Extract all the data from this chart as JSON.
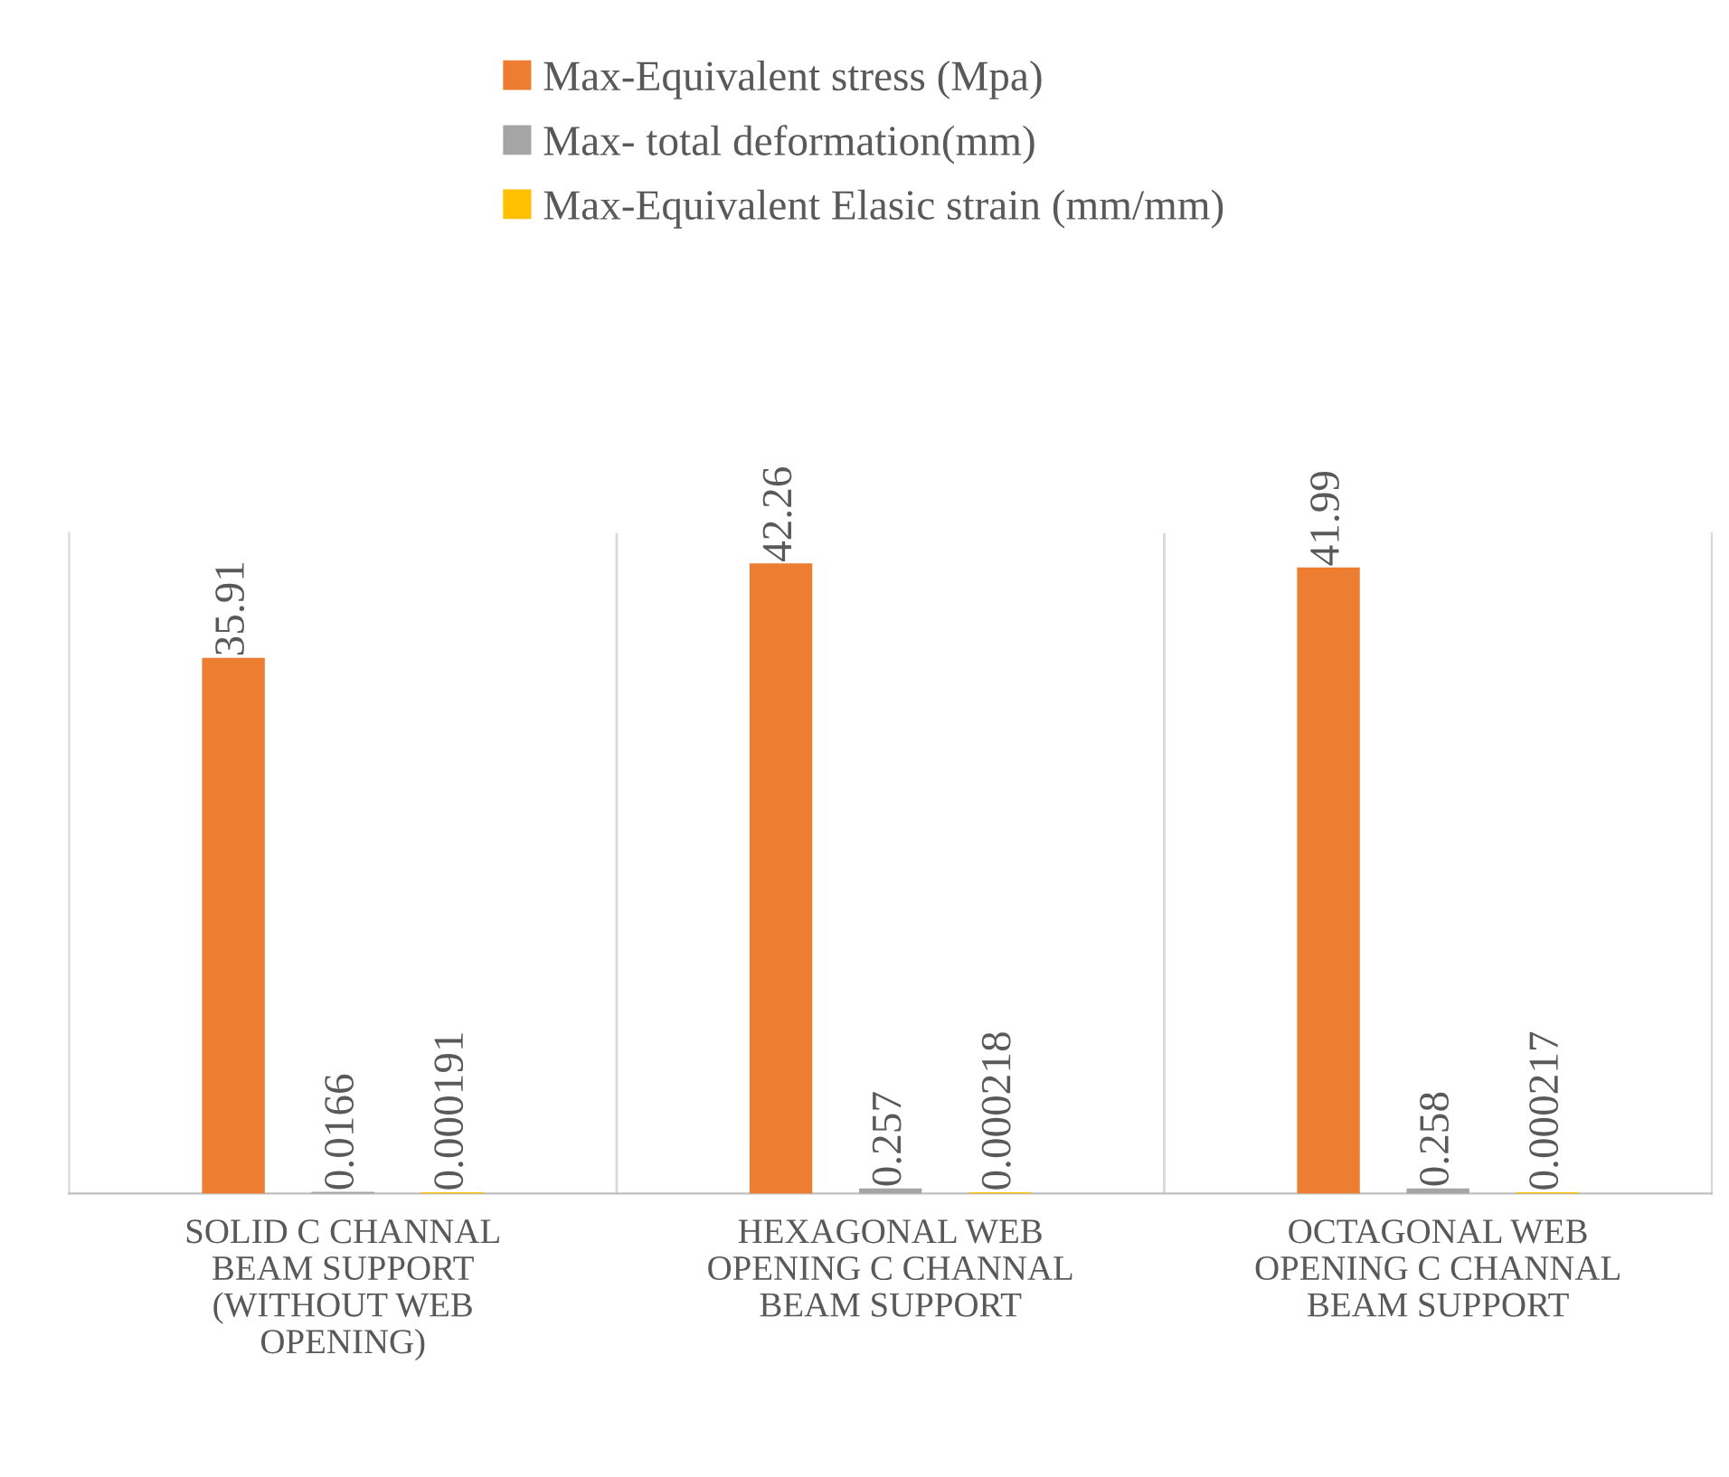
{
  "chart_data": {
    "type": "bar",
    "categories": [
      "SOLID C CHANNAL\nBEAM SUPPORT\n(WITHOUT WEB\nOPENING)",
      "HEXAGONAL WEB\nOPENING C CHANNAL\nBEAM SUPPORT",
      "OCTAGONAL WEB\nOPENING C CHANNAL\nBEAM SUPPORT"
    ],
    "series": [
      {
        "name": "Max-Equivalent stress (Mpa)",
        "color": "#ed7d31",
        "values": [
          35.91,
          42.26,
          41.99
        ]
      },
      {
        "name": "Max- total deformation(mm)",
        "color": "#a5a5a5",
        "values": [
          0.0166,
          0.257,
          0.258
        ]
      },
      {
        "name": "Max-Equivalent Elasic strain (mm/mm)",
        "color": "#ffc000",
        "values": [
          0.000191,
          0.000218,
          0.000217
        ]
      }
    ],
    "data_labels": true,
    "grid": "x",
    "legend": "top",
    "tick_labels": "x"
  }
}
